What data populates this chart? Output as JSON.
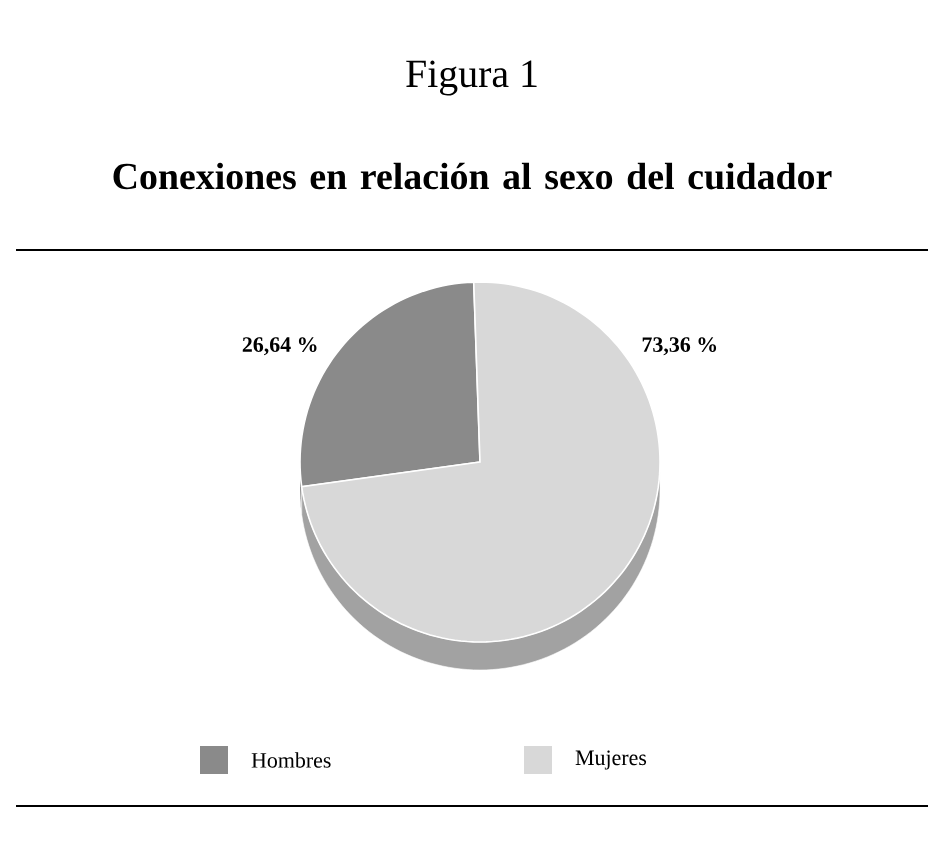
{
  "chart_data": {
    "type": "pie",
    "title": "Figura 1",
    "subtitle": "Conexiones en relación al sexo del cuidador",
    "categories": [
      "Hombres",
      "Mujeres"
    ],
    "values": [
      26.64,
      73.36
    ],
    "colors": [
      "#8a8a8a",
      "#d8d8d8"
    ],
    "value_labels": [
      "26,64 %",
      "73,36 %"
    ],
    "legend": "bottom"
  }
}
